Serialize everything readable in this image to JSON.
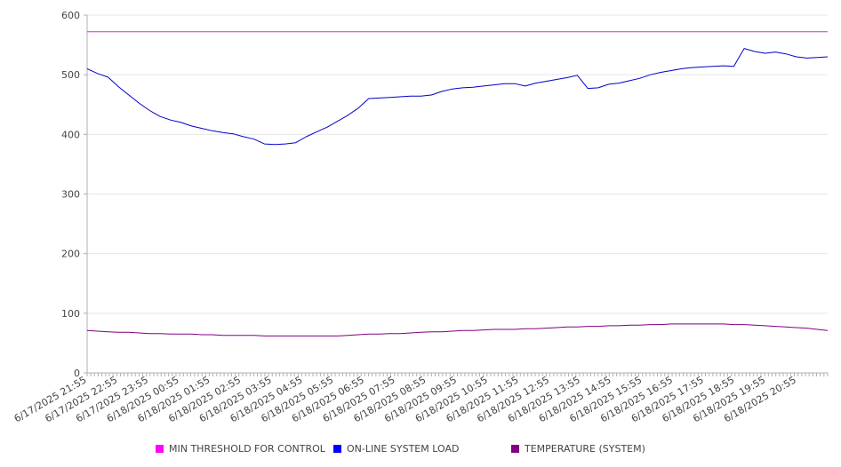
{
  "chart_data": {
    "type": "line",
    "title": "",
    "xlabel": "",
    "ylabel": "",
    "ylim": [
      0,
      600
    ],
    "yticks": [
      "0",
      "100",
      "200",
      "300",
      "400",
      "500",
      "600"
    ],
    "grid": true,
    "legend_position": "bottom",
    "x_labels": [
      "6/17/2025 21:55",
      "6/17/2025 22:55",
      "6/17/2025 23:55",
      "6/18/2025 00:55",
      "6/18/2025 01:55",
      "6/18/2025 02:55",
      "6/18/2025 03:55",
      "6/18/2025 04:55",
      "6/18/2025 05:55",
      "6/18/2025 06:55",
      "6/18/2025 07:55",
      "6/18/2025 08:55",
      "6/18/2025 09:55",
      "6/18/2025 10:55",
      "6/18/2025 11:55",
      "6/18/2025 12:55",
      "6/18/2025 13:55",
      "6/18/2025 14:55",
      "6/18/2025 15:55",
      "6/18/2025 16:55",
      "6/18/2025 17:55",
      "6/18/2025 18:55",
      "6/18/2025 19:55",
      "6/18/2025 20:55"
    ],
    "x": [
      "21:55",
      "22:15",
      "22:35",
      "22:55",
      "23:15",
      "23:35",
      "23:55",
      "00:15",
      "00:35",
      "00:55",
      "01:15",
      "01:35",
      "01:55",
      "02:15",
      "02:35",
      "02:55",
      "03:15",
      "03:35",
      "03:55",
      "04:15",
      "04:35",
      "04:55",
      "05:15",
      "05:35",
      "05:55",
      "06:15",
      "06:35",
      "06:55",
      "07:15",
      "07:35",
      "07:55",
      "08:15",
      "08:35",
      "08:55",
      "09:15",
      "09:35",
      "09:55",
      "10:15",
      "10:35",
      "10:55",
      "11:15",
      "11:35",
      "11:55",
      "12:15",
      "12:35",
      "12:55",
      "13:15",
      "13:35",
      "13:45",
      "13:55",
      "14:15",
      "14:35",
      "14:55",
      "15:15",
      "15:35",
      "15:55",
      "16:15",
      "16:35",
      "16:55",
      "17:15",
      "17:35",
      "17:55",
      "18:15",
      "18:35",
      "18:55",
      "19:15",
      "19:35",
      "19:55",
      "20:15",
      "20:35",
      "20:55",
      "21:25"
    ],
    "series": [
      {
        "name": "MIN THRESHOLD FOR CONTROL",
        "color": "#cc33cc",
        "values": [
          572,
          572,
          572,
          572,
          572,
          572,
          572,
          572,
          572,
          572,
          572,
          572,
          572,
          572,
          572,
          572,
          572,
          572,
          572,
          572,
          572,
          572,
          572,
          572,
          572,
          572,
          572,
          572,
          572,
          572,
          572,
          572,
          572,
          572,
          572,
          572,
          572,
          572,
          572,
          572,
          572,
          572,
          572,
          572,
          572,
          572,
          572,
          572,
          572,
          572,
          572,
          572,
          572,
          572,
          572,
          572,
          572,
          572,
          572,
          572,
          572,
          572,
          572,
          572,
          572,
          572,
          572,
          572,
          572,
          572,
          572,
          572
        ]
      },
      {
        "name": "ON-LINE SYSTEM LOAD",
        "color": "#0000cc",
        "values": [
          510,
          502,
          496,
          480,
          466,
          452,
          440,
          430,
          424,
          420,
          414,
          410,
          406,
          403,
          401,
          396,
          392,
          384,
          383,
          384,
          386,
          396,
          404,
          412,
          422,
          432,
          444,
          460,
          461,
          462,
          463,
          464,
          464,
          466,
          472,
          476,
          478,
          479,
          481,
          483,
          485,
          485,
          481,
          486,
          489,
          492,
          495,
          499,
          477,
          478,
          484,
          486,
          490,
          494,
          500,
          504,
          507,
          510,
          512,
          513,
          514,
          515,
          514,
          544,
          539,
          536,
          538,
          535,
          530,
          528,
          529,
          530
        ]
      },
      {
        "name": "TEMPERATURE (SYSTEM)",
        "color": "#800080",
        "values": [
          71,
          70,
          69,
          68,
          68,
          67,
          66,
          66,
          65,
          65,
          65,
          64,
          64,
          63,
          63,
          63,
          63,
          62,
          62,
          62,
          62,
          62,
          62,
          62,
          62,
          63,
          64,
          65,
          65,
          66,
          66,
          67,
          68,
          69,
          69,
          70,
          71,
          71,
          72,
          73,
          73,
          73,
          74,
          74,
          75,
          76,
          77,
          77,
          78,
          78,
          79,
          79,
          80,
          80,
          81,
          81,
          82,
          82,
          82,
          82,
          82,
          82,
          81,
          81,
          80,
          79,
          78,
          77,
          76,
          75,
          73,
          71
        ]
      }
    ]
  }
}
